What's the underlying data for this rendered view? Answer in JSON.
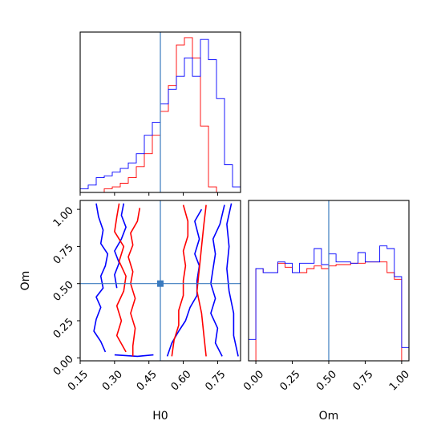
{
  "colors": {
    "red": "#ff0000",
    "blue": "#0000ff",
    "truth": "#3b7bbf",
    "axes": "#000000"
  },
  "chart_data": {
    "type": "corner",
    "parameters": [
      "H0",
      "Om"
    ],
    "truths": {
      "H0": 0.5,
      "Om": 0.5
    },
    "panels": [
      {
        "id": "hist-h0",
        "type": "histogram",
        "xlim": [
          0.15,
          0.85
        ],
        "xlabel": "",
        "ylabel": "",
        "xtick_labels_shown": false,
        "bins": [
          0.15,
          0.185,
          0.22,
          0.255,
          0.29,
          0.325,
          0.36,
          0.395,
          0.43,
          0.465,
          0.5,
          0.535,
          0.57,
          0.605,
          0.64,
          0.675,
          0.71,
          0.745,
          0.78,
          0.815,
          0.85
        ],
        "series": [
          {
            "color": "red",
            "counts": [
              0,
              0,
              0,
              2,
              3,
              5,
              8,
              14,
              21,
              31,
              44,
              58,
              80,
              84,
              73,
              36,
              3,
              0,
              0,
              0
            ]
          },
          {
            "color": "blue",
            "counts": [
              2,
              4,
              8,
              9,
              11,
              13,
              16,
              21,
              31,
              38,
              48,
              56,
              63,
              73,
              63,
              83,
              72,
              51,
              15,
              3
            ]
          }
        ]
      },
      {
        "id": "contour-h0-om",
        "type": "contour",
        "xlim": [
          0.15,
          0.85
        ],
        "ylim": [
          -0.02,
          1.06
        ],
        "xlabel": "H0",
        "ylabel": "Om",
        "xticks": [
          "0.15",
          "0.30",
          "0.45",
          "0.60",
          "0.75"
        ],
        "yticks": [
          "0.00",
          "0.25",
          "0.50",
          "0.75",
          "1.00"
        ],
        "series": [
          {
            "color": "blue",
            "paths": [
              [
                [
                  0.22,
                  1.04
                ],
                [
                  0.23,
                  0.95
                ],
                [
                  0.25,
                  0.86
                ],
                [
                  0.24,
                  0.77
                ],
                [
                  0.27,
                  0.7
                ],
                [
                  0.26,
                  0.62
                ],
                [
                  0.24,
                  0.55
                ],
                [
                  0.25,
                  0.47
                ],
                [
                  0.22,
                  0.41
                ],
                [
                  0.24,
                  0.34
                ],
                [
                  0.22,
                  0.26
                ],
                [
                  0.21,
                  0.18
                ],
                [
                  0.24,
                  0.11
                ],
                [
                  0.26,
                  0.04
                ]
              ],
              [
                [
                  0.34,
                  1.04
                ],
                [
                  0.33,
                  0.96
                ],
                [
                  0.35,
                  0.88
                ],
                [
                  0.33,
                  0.8
                ],
                [
                  0.3,
                  0.72
                ],
                [
                  0.32,
                  0.64
                ],
                [
                  0.3,
                  0.56
                ],
                [
                  0.31,
                  0.47
                ]
              ],
              [
                [
                  0.3,
                  0.02
                ],
                [
                  0.4,
                  0.01
                ],
                [
                  0.47,
                  0.02
                ]
              ],
              [
                [
                  0.53,
                  0.01
                ],
                [
                  0.55,
                  0.1
                ],
                [
                  0.58,
                  0.18
                ],
                [
                  0.61,
                  0.25
                ],
                [
                  0.63,
                  0.34
                ],
                [
                  0.66,
                  0.42
                ],
                [
                  0.66,
                  0.52
                ],
                [
                  0.67,
                  0.62
                ],
                [
                  0.65,
                  0.7
                ],
                [
                  0.67,
                  0.8
                ],
                [
                  0.65,
                  0.92
                ],
                [
                  0.68,
                  1.0
                ]
              ],
              [
                [
                  0.77,
                  0.01
                ],
                [
                  0.74,
                  0.1
                ],
                [
                  0.75,
                  0.2
                ],
                [
                  0.72,
                  0.3
                ],
                [
                  0.74,
                  0.4
                ],
                [
                  0.72,
                  0.5
                ],
                [
                  0.73,
                  0.6
                ],
                [
                  0.74,
                  0.7
                ],
                [
                  0.73,
                  0.8
                ],
                [
                  0.76,
                  0.9
                ],
                [
                  0.78,
                  1.03
                ]
              ],
              [
                [
                  0.84,
                  0.01
                ],
                [
                  0.82,
                  0.15
                ],
                [
                  0.82,
                  0.3
                ],
                [
                  0.8,
                  0.45
                ],
                [
                  0.79,
                  0.6
                ],
                [
                  0.8,
                  0.75
                ],
                [
                  0.79,
                  0.9
                ],
                [
                  0.81,
                  1.04
                ]
              ]
            ]
          },
          {
            "color": "red",
            "paths": [
              [
                [
                  0.32,
                  1.04
                ],
                [
                  0.31,
                  0.95
                ],
                [
                  0.3,
                  0.85
                ],
                [
                  0.34,
                  0.75
                ],
                [
                  0.32,
                  0.65
                ],
                [
                  0.35,
                  0.55
                ],
                [
                  0.34,
                  0.45
                ],
                [
                  0.31,
                  0.35
                ],
                [
                  0.33,
                  0.25
                ],
                [
                  0.31,
                  0.15
                ],
                [
                  0.35,
                  0.04
                ]
              ],
              [
                [
                  0.41,
                  1.01
                ],
                [
                  0.4,
                  0.92
                ],
                [
                  0.37,
                  0.84
                ],
                [
                  0.38,
                  0.76
                ],
                [
                  0.36,
                  0.68
                ],
                [
                  0.38,
                  0.58
                ],
                [
                  0.37,
                  0.5
                ],
                [
                  0.39,
                  0.4
                ],
                [
                  0.37,
                  0.3
                ],
                [
                  0.39,
                  0.2
                ],
                [
                  0.38,
                  0.08
                ],
                [
                  0.38,
                  0.01
                ]
              ],
              [
                [
                  0.55,
                  0.01
                ],
                [
                  0.56,
                  0.12
                ],
                [
                  0.58,
                  0.22
                ],
                [
                  0.58,
                  0.32
                ],
                [
                  0.6,
                  0.42
                ],
                [
                  0.6,
                  0.52
                ],
                [
                  0.61,
                  0.62
                ],
                [
                  0.6,
                  0.72
                ],
                [
                  0.62,
                  0.82
                ],
                [
                  0.62,
                  0.92
                ],
                [
                  0.6,
                  1.03
                ]
              ],
              [
                [
                  0.7,
                  0.01
                ],
                [
                  0.69,
                  0.15
                ],
                [
                  0.68,
                  0.3
                ],
                [
                  0.66,
                  0.45
                ],
                [
                  0.67,
                  0.6
                ],
                [
                  0.68,
                  0.75
                ],
                [
                  0.69,
                  0.9
                ],
                [
                  0.7,
                  1.03
                ]
              ]
            ]
          }
        ]
      },
      {
        "id": "hist-om",
        "type": "histogram",
        "xlim": [
          -0.05,
          1.05
        ],
        "xlabel": "Om",
        "xticks": [
          "0.00",
          "0.25",
          "0.50",
          "0.75",
          "1.00"
        ],
        "bins": [
          -0.05,
          0.0,
          0.05,
          0.1,
          0.15,
          0.2,
          0.25,
          0.3,
          0.35,
          0.4,
          0.45,
          0.5,
          0.55,
          0.6,
          0.65,
          0.7,
          0.75,
          0.8,
          0.85,
          0.9,
          0.95,
          1.0,
          1.05
        ],
        "series": [
          {
            "color": "red",
            "counts": [
              0,
              69,
              66,
              66,
              73,
              70,
              66,
              66,
              69,
              71,
              69,
              71,
              72,
              72,
              73,
              73,
              74,
              74,
              74,
              66,
              61,
              0
            ]
          },
          {
            "color": "blue",
            "counts": [
              16,
              69,
              66,
              66,
              74,
              73,
              66,
              73,
              73,
              84,
              72,
              80,
              74,
              74,
              73,
              81,
              74,
              74,
              86,
              84,
              63,
              10
            ]
          }
        ]
      }
    ]
  }
}
